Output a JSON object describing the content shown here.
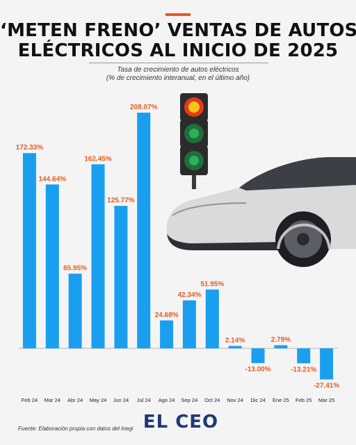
{
  "header": {
    "title_line1": "‘METEN FRENO’ VENTAS DE AUTOS",
    "title_line2": "ELÉCTRICOS AL INICIO DE 2025",
    "subtitle_line1": "Tasa de crecimiento de autos eléctricos",
    "subtitle_line2": "(% de crecimiento interanual, en el último año)"
  },
  "footer": {
    "source": "Fuente: Elaboración propia con datos del Inegi",
    "brand": "EL CEO"
  },
  "colors": {
    "bar": "#1a9ff0",
    "label": "#e85a1e",
    "accent": "#e85a1e",
    "brand": "#1e3a73"
  },
  "illustration": {
    "traffic_light": "traffic-light-icon",
    "car": "electric-car-illustration"
  },
  "chart_data": {
    "type": "bar",
    "categories": [
      "Feb 24",
      "Mar 24",
      "Abr 24",
      "May 24",
      "Jun 24",
      "Jul 24",
      "Ago 24",
      "Sep 24",
      "Oct 24",
      "Nov 24",
      "Dic 24",
      "Ene 25",
      "Feb 25",
      "Mar 25"
    ],
    "values": [
      172.33,
      144.64,
      65.95,
      162.45,
      125.77,
      208.07,
      24.68,
      42.34,
      51.95,
      2.14,
      -13.0,
      2.79,
      -13.21,
      -27.41
    ],
    "value_labels": [
      "172.33%",
      "144.64%",
      "65.95%",
      "162.45%",
      "125.77%",
      "208.07%",
      "24.68%",
      "42.34%",
      "51.95%",
      "2.14%",
      "-13.00%",
      "2.79%",
      "-13.21%",
      "-27.41%"
    ],
    "title": "Tasa de crecimiento de autos eléctricos",
    "subtitle": "(% de crecimiento interanual, en el último año)",
    "xlabel": "",
    "ylabel": "",
    "ylim": [
      -27.41,
      208.07
    ],
    "grid": false,
    "legend": "none"
  }
}
